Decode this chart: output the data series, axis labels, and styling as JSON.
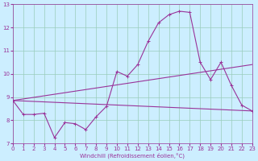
{
  "xlabel": "Windchill (Refroidissement éolien,°C)",
  "background_color": "#cceeff",
  "grid_color": "#99ccbb",
  "line_color": "#993399",
  "xmin": 0,
  "xmax": 23,
  "ymin": 7,
  "ymax": 13,
  "line1_x": [
    0,
    1,
    2,
    3,
    4,
    5,
    6,
    7,
    8,
    9,
    10,
    11,
    12,
    13,
    14,
    15,
    16,
    17,
    18,
    19,
    20,
    21,
    22,
    23
  ],
  "line1_y": [
    8.85,
    8.25,
    8.25,
    8.3,
    7.25,
    7.9,
    7.85,
    7.6,
    8.15,
    8.6,
    10.1,
    9.9,
    10.4,
    11.4,
    12.2,
    12.55,
    12.7,
    12.65,
    10.5,
    9.75,
    10.5,
    9.5,
    8.65,
    8.4
  ],
  "line2_x": [
    0,
    23
  ],
  "line2_y": [
    8.85,
    10.4
  ],
  "line3_x": [
    0,
    23
  ],
  "line3_y": [
    8.85,
    8.4
  ]
}
